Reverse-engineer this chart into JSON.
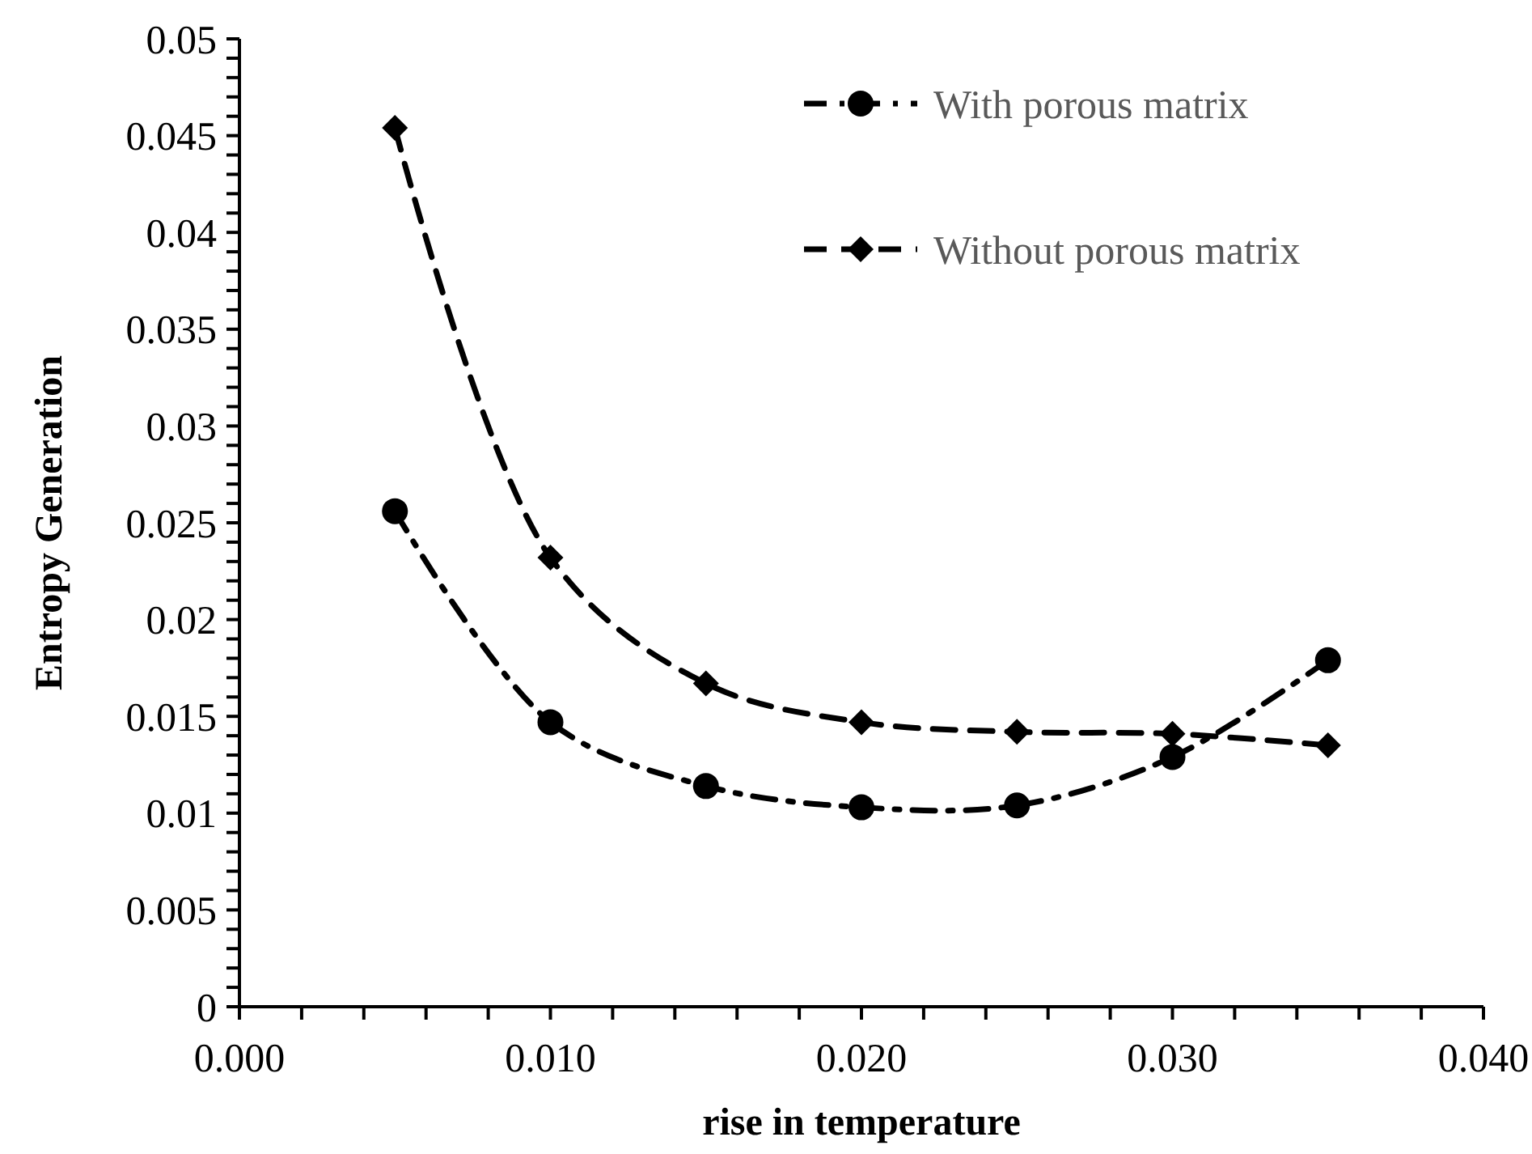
{
  "chart_data": {
    "type": "line",
    "xlabel": "rise in temperature",
    "ylabel": "Entropy Generation",
    "x": [
      0.005,
      0.01,
      0.015,
      0.02,
      0.025,
      0.03,
      0.035
    ],
    "series": [
      {
        "name": "With porous matrix",
        "color": "#000000",
        "marker": "circle",
        "line_style": "dashdot",
        "values": [
          0.0256,
          0.0147,
          0.0114,
          0.0103,
          0.0104,
          0.0129,
          0.0179
        ]
      },
      {
        "name": "Without porous matrix",
        "color": "#000000",
        "marker": "diamond",
        "line_style": "dashed",
        "values": [
          0.0454,
          0.0232,
          0.0167,
          0.0147,
          0.0142,
          0.0141,
          0.0135
        ]
      }
    ],
    "xlim": [
      0,
      0.04
    ],
    "xticks": [
      {
        "value": 0,
        "label": "0.000"
      },
      {
        "value": 0.002,
        "label": null
      },
      {
        "value": 0.004,
        "label": null
      },
      {
        "value": 0.006,
        "label": null
      },
      {
        "value": 0.008,
        "label": null
      },
      {
        "value": 0.01,
        "label": "0.010"
      },
      {
        "value": 0.012,
        "label": null
      },
      {
        "value": 0.014,
        "label": null
      },
      {
        "value": 0.016,
        "label": null
      },
      {
        "value": 0.018,
        "label": null
      },
      {
        "value": 0.02,
        "label": "0.020"
      },
      {
        "value": 0.022,
        "label": null
      },
      {
        "value": 0.024,
        "label": null
      },
      {
        "value": 0.026,
        "label": null
      },
      {
        "value": 0.028,
        "label": null
      },
      {
        "value": 0.03,
        "label": "0.030"
      },
      {
        "value": 0.032,
        "label": null
      },
      {
        "value": 0.034,
        "label": null
      },
      {
        "value": 0.036,
        "label": null
      },
      {
        "value": 0.038,
        "label": null
      },
      {
        "value": 0.04,
        "label": "0.040"
      }
    ],
    "ylim": [
      0,
      0.05
    ],
    "yticks": [
      0,
      {
        "value": 0.001,
        "label": null
      },
      {
        "value": 0.002,
        "label": null
      },
      {
        "value": 0.003,
        "label": null
      },
      {
        "value": 0.004,
        "label": null
      },
      0.005,
      {
        "value": 0.006,
        "label": null
      },
      {
        "value": 0.007,
        "label": null
      },
      {
        "value": 0.008,
        "label": null
      },
      {
        "value": 0.009,
        "label": null
      },
      0.01,
      {
        "value": 0.011,
        "label": null
      },
      {
        "value": 0.012,
        "label": null
      },
      {
        "value": 0.013,
        "label": null
      },
      {
        "value": 0.014,
        "label": null
      },
      0.015,
      {
        "value": 0.016,
        "label": null
      },
      {
        "value": 0.017,
        "label": null
      },
      {
        "value": 0.018,
        "label": null
      },
      {
        "value": 0.019,
        "label": null
      },
      0.02,
      {
        "value": 0.021,
        "label": null
      },
      {
        "value": 0.022,
        "label": null
      },
      {
        "value": 0.023,
        "label": null
      },
      {
        "value": 0.024,
        "label": null
      },
      0.025,
      {
        "value": 0.026,
        "label": null
      },
      {
        "value": 0.027,
        "label": null
      },
      {
        "value": 0.028,
        "label": null
      },
      {
        "value": 0.029,
        "label": null
      },
      0.03,
      {
        "value": 0.031,
        "label": null
      },
      {
        "value": 0.032,
        "label": null
      },
      {
        "value": 0.033,
        "label": null
      },
      {
        "value": 0.034,
        "label": null
      },
      0.035,
      {
        "value": 0.036,
        "label": null
      },
      {
        "value": 0.037,
        "label": null
      },
      {
        "value": 0.038,
        "label": null
      },
      {
        "value": 0.039,
        "label": null
      },
      0.04,
      {
        "value": 0.041,
        "label": null
      },
      {
        "value": 0.042,
        "label": null
      },
      {
        "value": 0.043,
        "label": null
      },
      {
        "value": 0.044,
        "label": null
      },
      0.045,
      {
        "value": 0.046,
        "label": null
      },
      {
        "value": 0.047,
        "label": null
      },
      {
        "value": 0.048,
        "label": null
      },
      {
        "value": 0.049,
        "label": null
      },
      0.05
    ],
    "grid": false,
    "legend": "top right"
  }
}
